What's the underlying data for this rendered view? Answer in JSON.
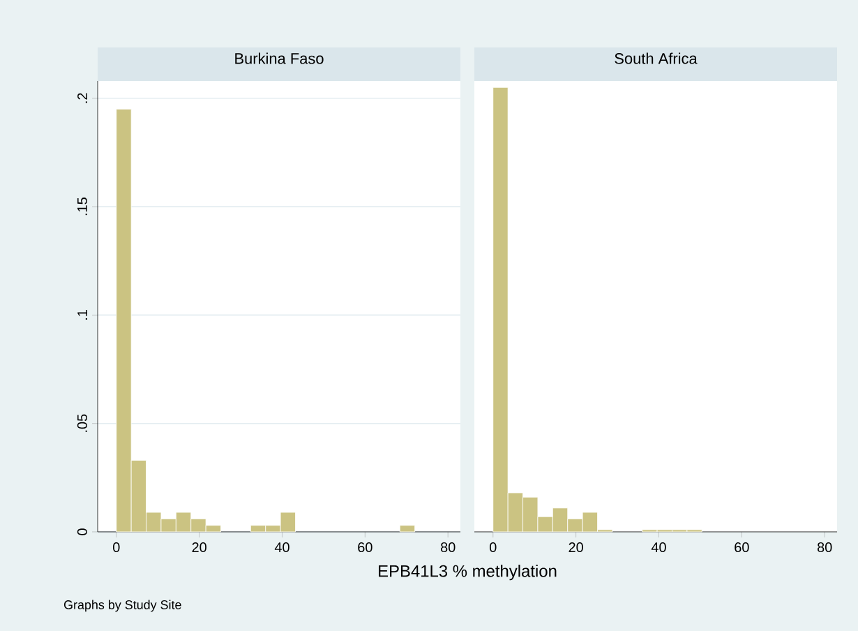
{
  "chart_data": [
    {
      "type": "histogram",
      "title": "Burkina Faso",
      "xlabel": "EPB41L3 % methylation",
      "annotations": [
        "Graphs by Study Site"
      ],
      "color": "#cbc382",
      "bins": [
        0,
        3.6,
        7.2,
        10.8,
        14.4,
        18,
        21.6,
        25.2,
        28.8,
        32.4,
        36,
        39.6,
        43.2,
        46.8,
        50.4,
        54,
        57.6,
        61.2,
        64.8,
        68.4,
        72
      ],
      "values": [
        0.195,
        0.033,
        0.009,
        0.006,
        0.009,
        0.006,
        0.003,
        0,
        0,
        0.003,
        0.003,
        0.009,
        0,
        0,
        0,
        0,
        0,
        0,
        0,
        0.003
      ],
      "xlim": [
        -4.5,
        83
      ],
      "xticks": [
        0,
        20,
        40,
        60,
        80
      ],
      "ylim": [
        0,
        0.208
      ],
      "yticks": [
        0,
        {
          "value": 0.05,
          "label": ".05"
        },
        {
          "value": 0.1,
          "label": ".1"
        },
        {
          "value": 0.15,
          "label": ".15"
        },
        {
          "value": 0.2,
          "label": ".2"
        }
      ],
      "grid": "y"
    },
    {
      "type": "histogram",
      "title": "South Africa",
      "color": "#cbc382",
      "bins": [
        0,
        3.6,
        7.2,
        10.8,
        14.4,
        18,
        21.6,
        25.2,
        28.8,
        32.4,
        36,
        39.6,
        43.2,
        46.8,
        50.4
      ],
      "values": [
        0.205,
        0.018,
        0.016,
        0.007,
        0.011,
        0.006,
        0.009,
        0.001,
        0,
        0,
        0.001,
        0.001,
        0.001,
        0.001
      ],
      "xlim": [
        -4.5,
        83
      ],
      "xticks": [
        0,
        20,
        40,
        60,
        80
      ],
      "ylim": [
        0,
        0.208
      ],
      "yticks": [
        0,
        0.05,
        0.1,
        0.15,
        0.2
      ],
      "grid": "y",
      "tick_labels": "x"
    }
  ]
}
